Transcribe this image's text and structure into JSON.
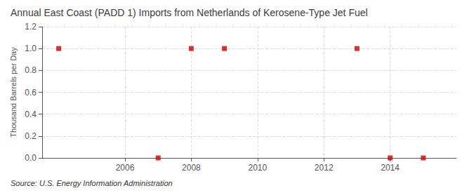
{
  "chart_data": {
    "type": "scatter",
    "title": "Annual East Coast (PADD 1) Imports from Netherlands of Kerosene-Type Jet Fuel",
    "ylabel": "Thousand Barrels per Day",
    "annotation": "Source: U.S. Energy Information Administration",
    "x": [
      2004,
      2007,
      2008,
      2009,
      2013,
      2014,
      2015
    ],
    "values": [
      1.0,
      0.0,
      1.0,
      1.0,
      1.0,
      0.0,
      0.0
    ],
    "xlim": [
      2003.5,
      2016.0
    ],
    "ylim": [
      0.0,
      1.2
    ],
    "xticks": [
      2006,
      2008,
      2010,
      2012,
      2014
    ],
    "yticks": [
      {
        "value": 0,
        "label": "0.0"
      },
      0.2,
      0.4,
      0.6,
      0.8,
      {
        "value": 1,
        "label": "1.0"
      },
      1.2
    ],
    "color": "#cc0000",
    "marker": "square",
    "grid": true
  }
}
